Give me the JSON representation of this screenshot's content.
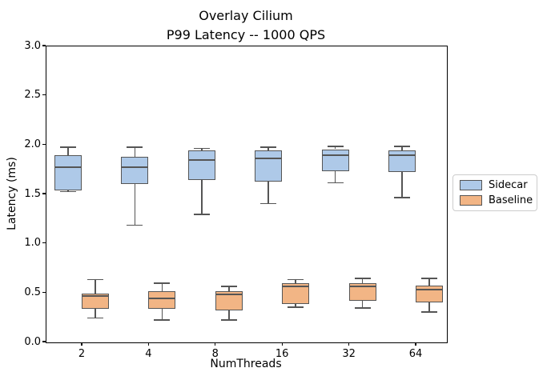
{
  "title": {
    "line1": "Overlay Cilium",
    "line2": "P99 Latency -- 1000 QPS"
  },
  "axes": {
    "xlabel": "NumThreads",
    "ylabel": "Latency (ms)",
    "x_tick_labels": [
      "2",
      "4",
      "8",
      "16",
      "32",
      "64"
    ],
    "y_tick_labels": [
      "0.0",
      "0.5",
      "1.0",
      "1.5",
      "2.0",
      "2.5",
      "3.0"
    ],
    "y_min": 0.0,
    "y_max": 3.0
  },
  "legend": {
    "position": "right-outside",
    "entries": [
      {
        "label": "Sidecar",
        "color": "#aec9e8"
      },
      {
        "label": "Baseline",
        "color": "#f2b585"
      }
    ]
  },
  "colors": {
    "sidecar_fill": "#aec9e8",
    "baseline_fill": "#f2b585",
    "box_edge": "#555555",
    "spine": "#000000"
  },
  "chart_data": {
    "type": "boxplot",
    "title": "Overlay Cilium\nP99 Latency -- 1000 QPS",
    "xlabel": "NumThreads",
    "ylabel": "Latency (ms)",
    "ylim": [
      0.0,
      3.0
    ],
    "grid": false,
    "legend_position": "center right outside",
    "categories": [
      2,
      4,
      8,
      16,
      32,
      64
    ],
    "series": [
      {
        "name": "Sidecar",
        "color": "#aec9e8",
        "boxes": [
          {
            "whislo": 1.52,
            "q1": 1.53,
            "med": 1.77,
            "q3": 1.89,
            "whishi": 1.97
          },
          {
            "whislo": 1.18,
            "q1": 1.6,
            "med": 1.77,
            "q3": 1.87,
            "whishi": 1.97
          },
          {
            "whislo": 1.29,
            "q1": 1.64,
            "med": 1.84,
            "q3": 1.94,
            "whishi": 1.96
          },
          {
            "whislo": 1.4,
            "q1": 1.62,
            "med": 1.86,
            "q3": 1.94,
            "whishi": 1.97
          },
          {
            "whislo": 1.61,
            "q1": 1.73,
            "med": 1.89,
            "q3": 1.95,
            "whishi": 1.98
          },
          {
            "whislo": 1.46,
            "q1": 1.72,
            "med": 1.89,
            "q3": 1.94,
            "whishi": 1.98
          }
        ]
      },
      {
        "name": "Baseline",
        "color": "#f2b585",
        "boxes": [
          {
            "whislo": 0.24,
            "q1": 0.33,
            "med": 0.46,
            "q3": 0.49,
            "whishi": 0.63
          },
          {
            "whislo": 0.22,
            "q1": 0.33,
            "med": 0.44,
            "q3": 0.51,
            "whishi": 0.59
          },
          {
            "whislo": 0.22,
            "q1": 0.32,
            "med": 0.48,
            "q3": 0.51,
            "whishi": 0.56
          },
          {
            "whislo": 0.35,
            "q1": 0.38,
            "med": 0.56,
            "q3": 0.59,
            "whishi": 0.63
          },
          {
            "whislo": 0.34,
            "q1": 0.41,
            "med": 0.56,
            "q3": 0.59,
            "whishi": 0.64
          },
          {
            "whislo": 0.3,
            "q1": 0.4,
            "med": 0.53,
            "q3": 0.57,
            "whishi": 0.64
          }
        ]
      }
    ]
  }
}
